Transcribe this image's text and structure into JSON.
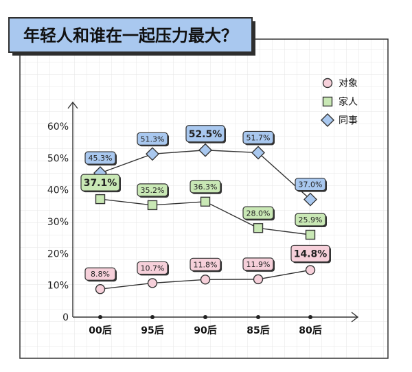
{
  "chart_data": {
    "type": "line",
    "title": "年轻人和谁在一起压力最大？",
    "categories": [
      "00后",
      "95后",
      "90后",
      "85后",
      "80后"
    ],
    "y_ticks": [
      "0",
      "10%",
      "20%",
      "30%",
      "40%",
      "50%",
      "60%"
    ],
    "ylim": [
      0,
      60
    ],
    "grid": true,
    "legend_position": "top-right",
    "series": [
      {
        "name": "对象",
        "marker": "circle",
        "color": "#f6d0da",
        "values": [
          8.8,
          10.7,
          11.8,
          11.9,
          14.8
        ],
        "labels": [
          "8.8%",
          "10.7%",
          "11.8%",
          "11.9%",
          "14.8%"
        ],
        "emphasis_index": 4
      },
      {
        "name": "家人",
        "marker": "square",
        "color": "#c9e8b5",
        "values": [
          37.1,
          35.2,
          36.3,
          28.0,
          25.9
        ],
        "labels": [
          "37.1%",
          "35.2%",
          "36.3%",
          "28.0%",
          "25.9%"
        ],
        "emphasis_index": 0
      },
      {
        "name": "同事",
        "marker": "diamond",
        "color": "#a9c8ef",
        "values": [
          45.3,
          51.3,
          52.5,
          51.7,
          37.0
        ],
        "labels": [
          "45.3%",
          "51.3%",
          "52.5%",
          "51.7%",
          "37.0%"
        ],
        "emphasis_index": 2
      }
    ]
  }
}
